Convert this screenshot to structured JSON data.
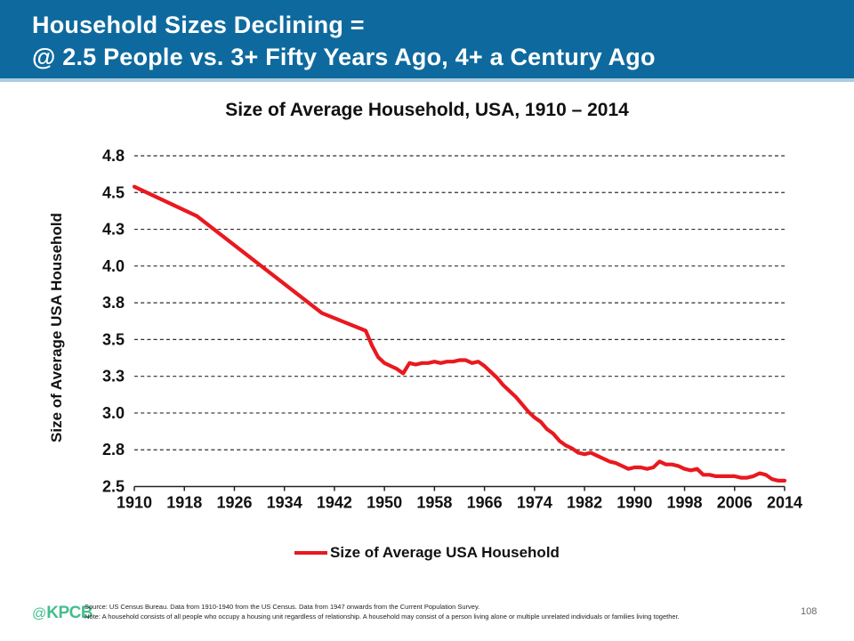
{
  "slide": {
    "header": {
      "line1": "Household Sizes Declining =",
      "line2": "@ 2.5 People vs. 3+ Fifty Years Ago, 4+ a Century Ago"
    },
    "footer": {
      "logo_at": "@",
      "logo_name": "KPCB",
      "source": "Source: US Census Bureau. Data from 1910-1940 from the US Census. Data from 1947 onwards from the Current Population Survey.",
      "note": "Note: A household consists of all people who occupy a housing unit regardless of relationship. A household may consist of a person living alone or multiple unrelated individuals or families living together.",
      "page_number": "108"
    },
    "colors": {
      "header_bg": "#0E6A9E",
      "header_separator": "#A9CDDF",
      "line_red": "#E8191F",
      "logo_green": "#43BE8D",
      "grid_dash": "#2E2E2E"
    }
  },
  "chart_data": {
    "type": "line",
    "title": "Size of Average Household, USA, 1910 – 2014",
    "xlabel": "",
    "ylabel": "Size of Average USA Household",
    "legend_position": "bottom",
    "grid": "horizontal-dashed",
    "xlim": [
      1910,
      2014
    ],
    "ylim": [
      2.5,
      4.75
    ],
    "x_ticks": [
      1910,
      1918,
      1926,
      1934,
      1942,
      1950,
      1958,
      1966,
      1974,
      1982,
      1990,
      1998,
      2006,
      2014
    ],
    "y_ticks": [
      {
        "label": "2.5",
        "value": 2.5
      },
      {
        "label": "2.8",
        "value": 2.75
      },
      {
        "label": "3.0",
        "value": 3.0
      },
      {
        "label": "3.3",
        "value": 3.25
      },
      {
        "label": "3.5",
        "value": 3.5
      },
      {
        "label": "3.8",
        "value": 3.75
      },
      {
        "label": "4.0",
        "value": 4.0
      },
      {
        "label": "4.3",
        "value": 4.25
      },
      {
        "label": "4.5",
        "value": 4.5
      },
      {
        "label": "4.8",
        "value": 4.75
      }
    ],
    "series": [
      {
        "name": "Size of Average USA Household",
        "color": "#E8191F",
        "points": [
          [
            1910,
            4.54
          ],
          [
            1920,
            4.34
          ],
          [
            1930,
            4.01
          ],
          [
            1940,
            3.68
          ],
          [
            1947,
            3.56
          ],
          [
            1948,
            3.46
          ],
          [
            1949,
            3.38
          ],
          [
            1950,
            3.34
          ],
          [
            1951,
            3.32
          ],
          [
            1952,
            3.3
          ],
          [
            1953,
            3.27
          ],
          [
            1954,
            3.34
          ],
          [
            1955,
            3.33
          ],
          [
            1956,
            3.34
          ],
          [
            1957,
            3.34
          ],
          [
            1958,
            3.35
          ],
          [
            1959,
            3.34
          ],
          [
            1960,
            3.35
          ],
          [
            1961,
            3.35
          ],
          [
            1962,
            3.36
          ],
          [
            1963,
            3.36
          ],
          [
            1964,
            3.34
          ],
          [
            1965,
            3.35
          ],
          [
            1966,
            3.32
          ],
          [
            1967,
            3.28
          ],
          [
            1968,
            3.24
          ],
          [
            1969,
            3.19
          ],
          [
            1970,
            3.15
          ],
          [
            1971,
            3.11
          ],
          [
            1972,
            3.06
          ],
          [
            1973,
            3.01
          ],
          [
            1974,
            2.97
          ],
          [
            1975,
            2.94
          ],
          [
            1976,
            2.89
          ],
          [
            1977,
            2.86
          ],
          [
            1978,
            2.81
          ],
          [
            1979,
            2.78
          ],
          [
            1980,
            2.76
          ],
          [
            1981,
            2.73
          ],
          [
            1982,
            2.72
          ],
          [
            1983,
            2.73
          ],
          [
            1984,
            2.71
          ],
          [
            1985,
            2.69
          ],
          [
            1986,
            2.67
          ],
          [
            1987,
            2.66
          ],
          [
            1988,
            2.64
          ],
          [
            1989,
            2.62
          ],
          [
            1990,
            2.63
          ],
          [
            1991,
            2.63
          ],
          [
            1992,
            2.62
          ],
          [
            1993,
            2.63
          ],
          [
            1994,
            2.67
          ],
          [
            1995,
            2.65
          ],
          [
            1996,
            2.65
          ],
          [
            1997,
            2.64
          ],
          [
            1998,
            2.62
          ],
          [
            1999,
            2.61
          ],
          [
            2000,
            2.62
          ],
          [
            2001,
            2.58
          ],
          [
            2002,
            2.58
          ],
          [
            2003,
            2.57
          ],
          [
            2004,
            2.57
          ],
          [
            2005,
            2.57
          ],
          [
            2006,
            2.57
          ],
          [
            2007,
            2.56
          ],
          [
            2008,
            2.56
          ],
          [
            2009,
            2.57
          ],
          [
            2010,
            2.59
          ],
          [
            2011,
            2.58
          ],
          [
            2012,
            2.55
          ],
          [
            2013,
            2.54
          ],
          [
            2014,
            2.54
          ]
        ]
      }
    ]
  }
}
